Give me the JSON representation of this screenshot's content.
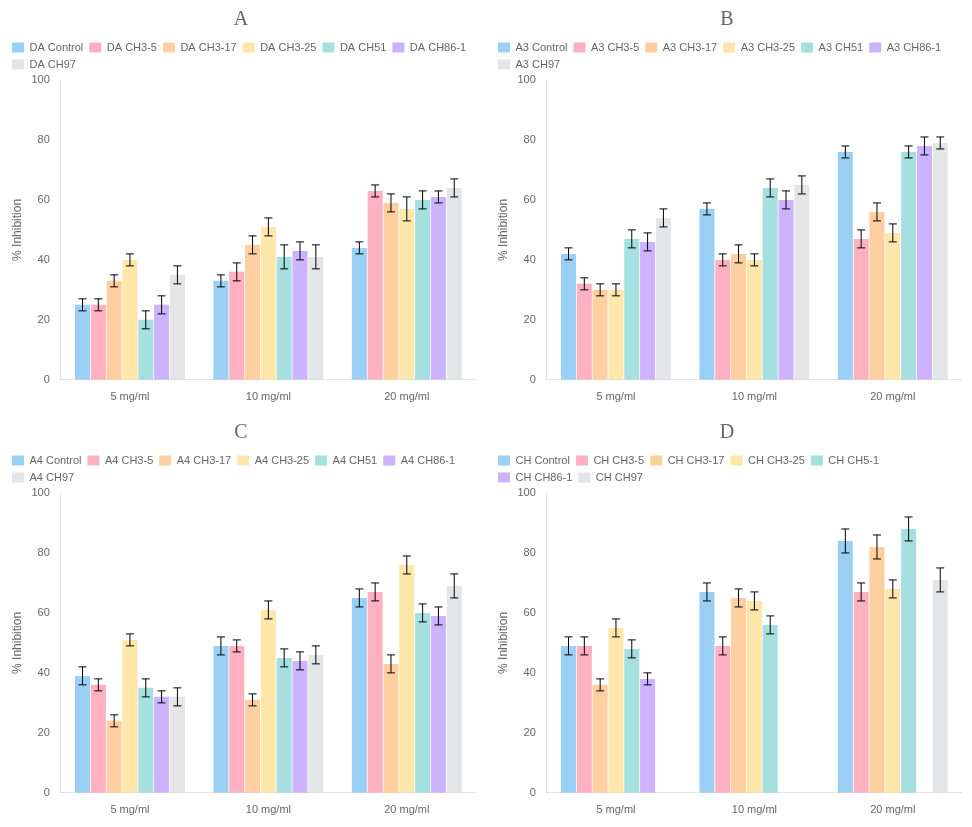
{
  "chart_data": [
    {
      "type": "bar",
      "title": "A",
      "categories": [
        "5 mg/ml",
        "10 mg/ml",
        "20 mg/ml"
      ],
      "series": [
        {
          "name": "DA Control",
          "values": [
            25,
            33,
            44
          ],
          "errors": [
            2,
            2,
            2
          ]
        },
        {
          "name": "DA CH3-5",
          "values": [
            25,
            36,
            63
          ],
          "errors": [
            2,
            3,
            2
          ]
        },
        {
          "name": "DA CH3-17",
          "values": [
            33,
            45,
            59
          ],
          "errors": [
            2,
            3,
            3
          ]
        },
        {
          "name": "DA CH3-25",
          "values": [
            40,
            51,
            57
          ],
          "errors": [
            2,
            3,
            4
          ]
        },
        {
          "name": "DA CH51",
          "values": [
            20,
            41,
            60
          ],
          "errors": [
            3,
            4,
            3
          ]
        },
        {
          "name": "DA CH86-1",
          "values": [
            25,
            43,
            61
          ],
          "errors": [
            3,
            3,
            2
          ]
        },
        {
          "name": "DA CH97",
          "values": [
            35,
            41,
            64
          ],
          "errors": [
            3,
            4,
            3
          ]
        }
      ],
      "ylabel": "% Inhibition",
      "ylim": [
        0,
        100
      ],
      "yticks": [
        0,
        20,
        40,
        60,
        80,
        100
      ],
      "grid": false,
      "legend": "upper left"
    },
    {
      "type": "bar",
      "title": "B",
      "categories": [
        "5 mg/ml",
        "10 mg/ml",
        "20 mg/ml"
      ],
      "series": [
        {
          "name": "A3 Control",
          "values": [
            42,
            57,
            76
          ],
          "errors": [
            2,
            2,
            2
          ]
        },
        {
          "name": "A3 CH3-5",
          "values": [
            32,
            40,
            47
          ],
          "errors": [
            2,
            2,
            3
          ]
        },
        {
          "name": "A3 CH3-17",
          "values": [
            30,
            42,
            56
          ],
          "errors": [
            2,
            3,
            3
          ]
        },
        {
          "name": "A3 CH3-25",
          "values": [
            30,
            40,
            49
          ],
          "errors": [
            2,
            2,
            3
          ]
        },
        {
          "name": "A3 CH51",
          "values": [
            47,
            64,
            76
          ],
          "errors": [
            3,
            3,
            2
          ]
        },
        {
          "name": "A3 CH86-1",
          "values": [
            46,
            60,
            78
          ],
          "errors": [
            3,
            3,
            3
          ]
        },
        {
          "name": "A3 CH97",
          "values": [
            54,
            65,
            79
          ],
          "errors": [
            3,
            3,
            2
          ]
        }
      ],
      "ylabel": "% Inhibition",
      "ylim": [
        0,
        100
      ],
      "yticks": [
        0,
        20,
        40,
        60,
        80,
        100
      ],
      "grid": false,
      "legend": "upper left"
    },
    {
      "type": "bar",
      "title": "C",
      "categories": [
        "5 mg/ml",
        "10 mg/ml",
        "20 mg/ml"
      ],
      "series": [
        {
          "name": "A4 Control",
          "values": [
            39,
            49,
            65
          ],
          "errors": [
            3,
            3,
            3
          ]
        },
        {
          "name": "A4 CH3-5",
          "values": [
            36,
            49,
            67
          ],
          "errors": [
            2,
            2,
            3
          ]
        },
        {
          "name": "A4 CH3-17",
          "values": [
            24,
            31,
            43
          ],
          "errors": [
            2,
            2,
            3
          ]
        },
        {
          "name": "A4 CH3-25",
          "values": [
            51,
            61,
            76
          ],
          "errors": [
            2,
            3,
            3
          ]
        },
        {
          "name": "A4 CH51",
          "values": [
            35,
            45,
            60
          ],
          "errors": [
            3,
            3,
            3
          ]
        },
        {
          "name": "A4 CH86-1",
          "values": [
            32,
            44,
            59
          ],
          "errors": [
            2,
            3,
            3
          ]
        },
        {
          "name": "A4 CH97",
          "values": [
            32,
            46,
            69
          ],
          "errors": [
            3,
            3,
            4
          ]
        }
      ],
      "ylabel": "% Inhibition",
      "ylim": [
        0,
        100
      ],
      "yticks": [
        0,
        20,
        40,
        60,
        80,
        100
      ],
      "grid": false,
      "legend": "upper left"
    },
    {
      "type": "bar",
      "title": "D",
      "categories": [
        "5 mg/ml",
        "10 mg/ml",
        "20 mg/ml"
      ],
      "series": [
        {
          "name": "CH Control",
          "values": [
            49,
            67,
            84
          ],
          "errors": [
            3,
            3,
            4
          ]
        },
        {
          "name": "CH CH3-5",
          "values": [
            49,
            49,
            67
          ],
          "errors": [
            3,
            3,
            3
          ]
        },
        {
          "name": "CH CH3-17",
          "values": [
            36,
            65,
            82
          ],
          "errors": [
            2,
            3,
            4
          ]
        },
        {
          "name": "CH CH3-25",
          "values": [
            55,
            64,
            68
          ],
          "errors": [
            3,
            3,
            3
          ]
        },
        {
          "name": "CH CH5-1",
          "values": [
            48,
            56,
            88
          ],
          "errors": [
            3,
            3,
            4
          ]
        },
        {
          "name": "CH CH86-1",
          "values": [
            38,
            null,
            null
          ],
          "errors": [
            2,
            null,
            null
          ]
        },
        {
          "name": "CH CH97",
          "values": [
            null,
            null,
            71
          ],
          "errors": [
            null,
            null,
            4
          ]
        }
      ],
      "ylabel": "% Inhibition",
      "ylim": [
        0,
        100
      ],
      "yticks": [
        0,
        20,
        40,
        60,
        80,
        100
      ],
      "grid": false,
      "legend": "upper left"
    }
  ]
}
